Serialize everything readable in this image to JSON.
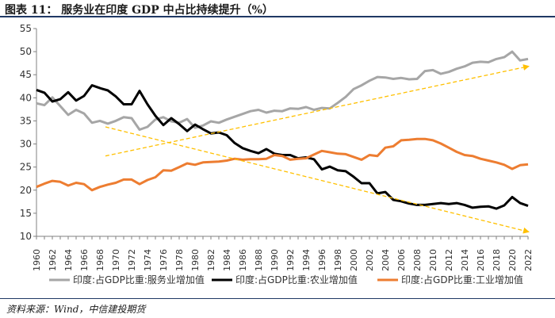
{
  "figure_title": "图表 11：   服务业在印度 GDP 中占比持续提升（%）",
  "source_text": "资料来源：Wind，中信建投期货",
  "chart_data": {
    "type": "line",
    "title": "服务业在印度 GDP 中占比持续提升（%）",
    "xlabel": "",
    "ylabel": "",
    "ylim": [
      10,
      55
    ],
    "yticks": [
      10,
      15,
      20,
      25,
      30,
      35,
      40,
      45,
      50,
      55
    ],
    "x": [
      1960,
      1961,
      1962,
      1963,
      1964,
      1965,
      1966,
      1967,
      1968,
      1969,
      1970,
      1971,
      1972,
      1973,
      1974,
      1975,
      1976,
      1977,
      1978,
      1979,
      1980,
      1981,
      1982,
      1983,
      1984,
      1985,
      1986,
      1987,
      1988,
      1989,
      1990,
      1991,
      1992,
      1993,
      1994,
      1995,
      1996,
      1997,
      1998,
      1999,
      2000,
      2001,
      2002,
      2003,
      2004,
      2005,
      2006,
      2007,
      2008,
      2009,
      2010,
      2011,
      2012,
      2013,
      2014,
      2015,
      2016,
      2017,
      2018,
      2019,
      2020,
      2021,
      2022
    ],
    "xtick_labels": [
      "1960",
      "1962",
      "1964",
      "1966",
      "1968",
      "1970",
      "1972",
      "1974",
      "1976",
      "1978",
      "1980",
      "1982",
      "1984",
      "1986",
      "1988",
      "1990",
      "1992",
      "1994",
      "1996",
      "1998",
      "2000",
      "2002",
      "2004",
      "2006",
      "2008",
      "2010",
      "2012",
      "2014",
      "2016",
      "2018",
      "2020",
      "2022"
    ],
    "legend_position": "bottom",
    "series": [
      {
        "name": "印度:占GDP比重:服务业增加值",
        "color": "#a6a6a6",
        "values": [
          38.8,
          38.4,
          40.1,
          38.2,
          36.3,
          37.4,
          36.6,
          34.6,
          35.0,
          34.4,
          35.0,
          35.8,
          35.6,
          33.1,
          33.7,
          35.3,
          35.8,
          34.9,
          34.6,
          35.4,
          33.5,
          34.0,
          34.9,
          34.6,
          35.3,
          35.9,
          36.5,
          37.1,
          37.4,
          36.8,
          37.2,
          37.1,
          37.7,
          37.6,
          38.0,
          37.4,
          37.8,
          37.7,
          38.9,
          40.2,
          41.9,
          42.7,
          43.7,
          44.5,
          44.4,
          44.1,
          44.3,
          44.0,
          44.1,
          45.8,
          46.0,
          45.2,
          45.6,
          46.3,
          46.8,
          47.6,
          47.8,
          47.7,
          48.4,
          48.8,
          50.0,
          48.1,
          48.4
        ]
      },
      {
        "name": "印度:占GDP比重:农业增加值",
        "color": "#000000",
        "values": [
          41.7,
          41.1,
          39.2,
          39.7,
          41.2,
          39.4,
          40.4,
          42.7,
          42.1,
          41.6,
          40.3,
          38.6,
          38.6,
          41.5,
          38.6,
          36.1,
          34.1,
          35.6,
          34.3,
          32.8,
          34.2,
          33.2,
          32.3,
          32.5,
          31.9,
          30.2,
          29.1,
          28.5,
          28.0,
          28.9,
          27.9,
          27.6,
          27.6,
          26.9,
          27.1,
          26.7,
          24.5,
          25.1,
          24.3,
          24.1,
          22.9,
          21.5,
          21.5,
          19.3,
          19.6,
          17.9,
          17.6,
          17.1,
          16.8,
          16.8,
          17.0,
          17.2,
          17.0,
          17.2,
          16.8,
          16.2,
          16.4,
          16.5,
          16.0,
          16.7,
          18.5,
          17.2,
          16.6
        ]
      },
      {
        "name": "印度:占GDP比重:工业增加值",
        "color": "#ed7d31",
        "values": [
          20.7,
          21.4,
          22.0,
          21.8,
          21.0,
          21.6,
          21.3,
          20.0,
          20.7,
          21.2,
          21.6,
          22.3,
          22.3,
          21.3,
          22.2,
          22.8,
          24.3,
          24.2,
          25.0,
          25.8,
          25.5,
          26.0,
          26.1,
          26.2,
          26.4,
          26.8,
          26.6,
          26.7,
          26.7,
          26.8,
          27.6,
          27.4,
          26.6,
          26.8,
          26.9,
          27.7,
          28.5,
          28.2,
          27.9,
          27.8,
          27.2,
          26.6,
          27.6,
          27.4,
          29.2,
          29.5,
          30.8,
          30.9,
          31.1,
          31.1,
          30.8,
          30.1,
          29.2,
          28.3,
          27.6,
          27.4,
          26.8,
          26.4,
          26.0,
          25.5,
          24.6,
          25.4,
          25.6
        ]
      }
    ],
    "trend_arrows": [
      {
        "name": "services-trend",
        "from": [
          1968.7,
          27.4
        ],
        "to": [
          2022,
          46.8
        ],
        "color": "#ffc000"
      },
      {
        "name": "agriculture-trend",
        "from": [
          1968.7,
          33.7
        ],
        "to": [
          2022,
          11.0
        ],
        "color": "#ffc000"
      }
    ]
  }
}
